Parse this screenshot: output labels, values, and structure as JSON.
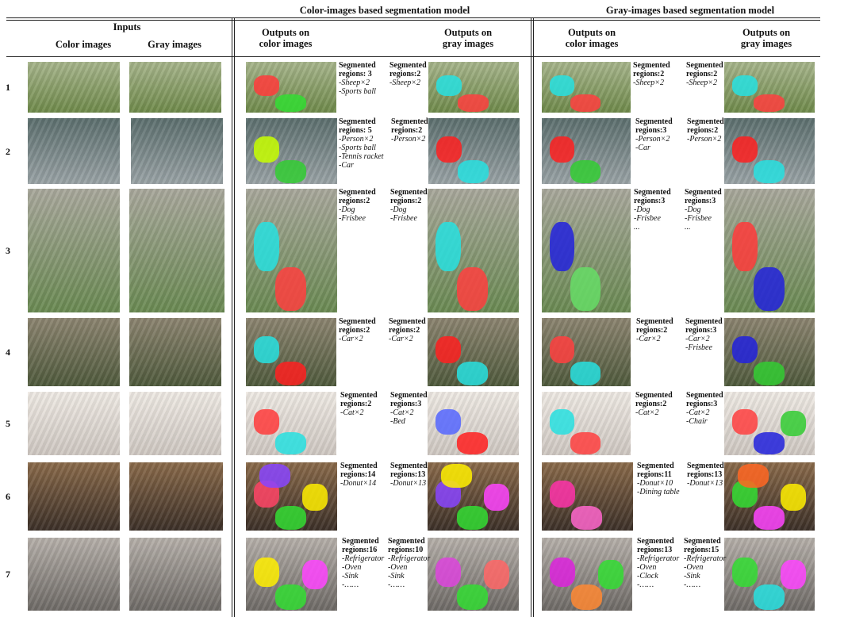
{
  "headers": {
    "color_model": "Color-images based segmentation model",
    "gray_model": "Gray-images based segmentation model",
    "inputs": "Inputs",
    "color_images": "Color images",
    "gray_images": "Gray images",
    "out_color_1": "Outputs on",
    "out_color_2": "color images",
    "out_gray_1": "Outputs on",
    "out_gray_2": "gray images"
  },
  "rows": [
    {
      "num": "1",
      "cc": {
        "title": [
          "Segmented",
          "regions: 3"
        ],
        "items": [
          "-Sheep×2",
          "-Sports ball"
        ]
      },
      "cg": {
        "title": [
          "Segmented",
          "regions:2"
        ],
        "items": [
          "-Sheep×2"
        ]
      },
      "gc": {
        "title": [
          "Segmented",
          "regions:2"
        ],
        "items": [
          "-Sheep×2"
        ]
      },
      "gg": {
        "title": [
          "Segmented",
          "regions:2"
        ],
        "items": [
          "-Sheep×2"
        ]
      }
    },
    {
      "num": "2",
      "cc": {
        "title": [
          "Segmented",
          "regions: 5"
        ],
        "items": [
          "-Person×2",
          "-Sports ball",
          "-Tennis racket",
          "-Car"
        ]
      },
      "cg": {
        "title": [
          "Segmented",
          "regions:2"
        ],
        "items": [
          "-Person×2"
        ]
      },
      "gc": {
        "title": [
          "Segmented",
          "regions:3"
        ],
        "items": [
          "-Person×2",
          "-Car"
        ]
      },
      "gg": {
        "title": [
          "Segmented",
          "regions:2"
        ],
        "items": [
          "-Person×2"
        ]
      }
    },
    {
      "num": "3",
      "cc": {
        "title": [
          "Segmented",
          "regions:2"
        ],
        "items": [
          "-Dog",
          "-Frisbee"
        ]
      },
      "cg": {
        "title": [
          "Segmented",
          "regions:2"
        ],
        "items": [
          "-Dog",
          "-Frisbee"
        ]
      },
      "gc": {
        "title": [
          "Segmented",
          "regions:3"
        ],
        "items": [
          "-Dog",
          "-Frisbee",
          "..."
        ]
      },
      "gg": {
        "title": [
          "Segmented",
          "regions:3"
        ],
        "items": [
          "-Dog",
          "-Frisbee",
          "..."
        ]
      }
    },
    {
      "num": "4",
      "cc": {
        "title": [
          "Segmented",
          "regions:2"
        ],
        "items": [
          "-Car×2"
        ]
      },
      "cg": {
        "title": [
          "Segmented",
          "regions:2"
        ],
        "items": [
          "-Car×2"
        ]
      },
      "gc": {
        "title": [
          "Segmented",
          "regions:2"
        ],
        "items": [
          "-Car×2"
        ]
      },
      "gg": {
        "title": [
          "Segmented",
          "regions:3"
        ],
        "items": [
          "-Car×2",
          "-Frisbee"
        ]
      }
    },
    {
      "num": "5",
      "cc": {
        "title": [
          "Segmented",
          "regions:2"
        ],
        "items": [
          "-Cat×2"
        ]
      },
      "cg": {
        "title": [
          "Segmented",
          "regions:3"
        ],
        "items": [
          "-Cat×2",
          "-Bed"
        ]
      },
      "gc": {
        "title": [
          "Segmented",
          "regions:2"
        ],
        "items": [
          "-Cat×2"
        ]
      },
      "gg": {
        "title": [
          "Segmented",
          "regions:3"
        ],
        "items": [
          "-Cat×2",
          "-Chair"
        ]
      }
    },
    {
      "num": "6",
      "cc": {
        "title": [
          "Segmented",
          "regions:14"
        ],
        "items": [
          "-Donut×14"
        ]
      },
      "cg": {
        "title": [
          "Segmented",
          "regions:13"
        ],
        "items": [
          "-Donut×13"
        ]
      },
      "gc": {
        "title": [
          "Segmented",
          "regions:11"
        ],
        "items": [
          "-Donut×10",
          "-Dining table"
        ]
      },
      "gg": {
        "title": [
          "Segmented",
          "regions:13"
        ],
        "items": [
          "-Donut×13"
        ]
      }
    },
    {
      "num": "7",
      "cc": {
        "title": [
          "Segmented",
          "regions:16"
        ],
        "items": [
          "-Refrigerator",
          "-Oven",
          "-Sink",
          "-……"
        ]
      },
      "cg": {
        "title": [
          "Segmented",
          "regions:10"
        ],
        "items": [
          "-Refrigerator",
          "-Oven",
          "-Sink",
          "-……"
        ]
      },
      "gc": {
        "title": [
          "Segmented",
          "regions:13"
        ],
        "items": [
          "-Refrigerator",
          "-Oven",
          "-Clock",
          "-……"
        ]
      },
      "gg": {
        "title": [
          "Segmented",
          "regions:15"
        ],
        "items": [
          "-Refrigerator",
          "-Oven",
          "-Sink",
          "-……"
        ]
      }
    }
  ]
}
